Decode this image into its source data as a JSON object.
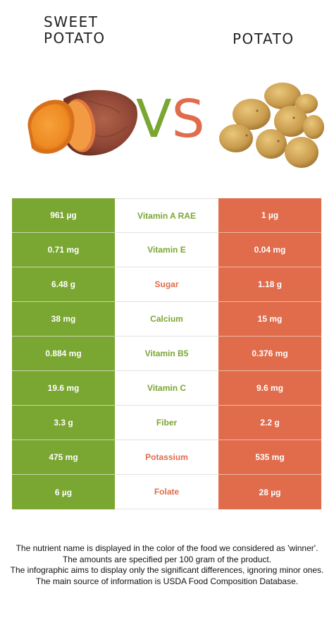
{
  "header": {
    "left_title_line1": "SWEET",
    "left_title_line2": "POTATO",
    "right_title": "POTATO",
    "vs_v": "V",
    "vs_s": "S"
  },
  "colors": {
    "winner_left": "#7aa632",
    "winner_right": "#e06c4c"
  },
  "rows": [
    {
      "left": "961 µg",
      "nutrient": "Vitamin A RAE",
      "right": "1 µg",
      "winner": "left"
    },
    {
      "left": "0.71 mg",
      "nutrient": "Vitamin E",
      "right": "0.04 mg",
      "winner": "left"
    },
    {
      "left": "6.48 g",
      "nutrient": "Sugar",
      "right": "1.18 g",
      "winner": "right"
    },
    {
      "left": "38 mg",
      "nutrient": "Calcium",
      "right": "15 mg",
      "winner": "left"
    },
    {
      "left": "0.884 mg",
      "nutrient": "Vitamin B5",
      "right": "0.376 mg",
      "winner": "left"
    },
    {
      "left": "19.6 mg",
      "nutrient": "Vitamin C",
      "right": "9.6 mg",
      "winner": "left"
    },
    {
      "left": "3.3 g",
      "nutrient": "Fiber",
      "right": "2.2 g",
      "winner": "left"
    },
    {
      "left": "475 mg",
      "nutrient": "Potassium",
      "right": "535 mg",
      "winner": "right"
    },
    {
      "left": "6 µg",
      "nutrient": "Folate",
      "right": "28 µg",
      "winner": "right"
    }
  ],
  "footer": {
    "line1": "The nutrient name is displayed in the color of the food we considered as 'winner'.",
    "line2": "The amounts are specified per 100 gram of the product.",
    "line3": "The infographic aims to display only the significant differences, ignoring minor ones.",
    "line4": "The main source of information is USDA Food Composition Database."
  }
}
